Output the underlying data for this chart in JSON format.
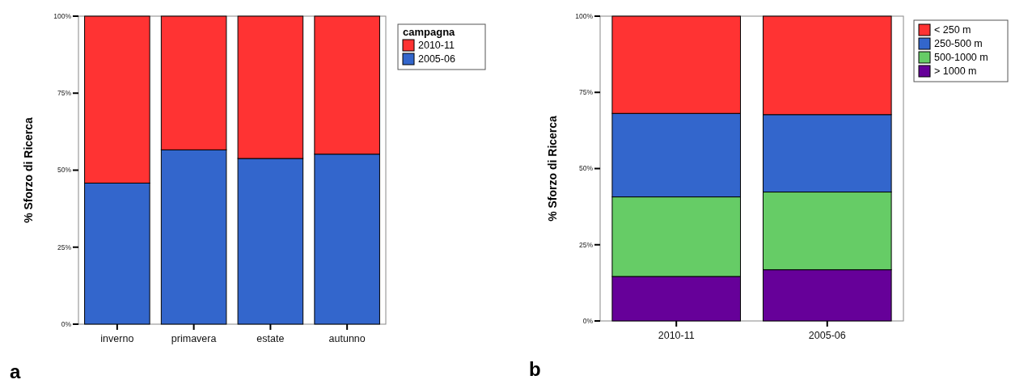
{
  "chart_data": [
    {
      "type": "bar",
      "stacked": true,
      "ylabel": "% Sforzo di Ricerca",
      "legend_title": "campagna",
      "legend": "right",
      "categories": [
        "inverno",
        "primavera",
        "estate",
        "autunno"
      ],
      "series": [
        {
          "name": "2005-06",
          "color": "#3366cc",
          "values": [
            45.8,
            56.6,
            53.8,
            55.2
          ]
        },
        {
          "name": "2010-11",
          "color": "#ff3333",
          "values": [
            54.2,
            43.4,
            46.2,
            44.8
          ]
        }
      ],
      "ylim": [
        0,
        100
      ],
      "yticks": [
        {
          "value": 0,
          "label": "0%"
        },
        {
          "value": 25,
          "label": "25%"
        },
        {
          "value": 50,
          "label": "50%"
        },
        {
          "value": 75,
          "label": "75%"
        },
        {
          "value": 100,
          "label": "100%"
        }
      ],
      "grid": false,
      "annotations": [
        "a"
      ]
    },
    {
      "type": "bar",
      "stacked": true,
      "ylabel": "% Sforzo di Ricerca",
      "legend": "right",
      "categories": [
        "2010-11",
        "2005-06"
      ],
      "series": [
        {
          "name": "> 1000 m",
          "color": "#660099",
          "values": [
            14.6,
            16.8
          ]
        },
        {
          "name": "500-1000 m",
          "color": "#66cc66",
          "values": [
            26.1,
            25.5
          ]
        },
        {
          "name": "250-500 m",
          "color": "#3366cc",
          "values": [
            27.4,
            25.4
          ]
        },
        {
          "name": "< 250 m",
          "color": "#ff3333",
          "values": [
            31.9,
            32.3
          ]
        }
      ],
      "ylim": [
        0,
        100
      ],
      "yticks": [
        {
          "value": 0,
          "label": "0%"
        },
        {
          "value": 25,
          "label": "25%"
        },
        {
          "value": 50,
          "label": "50%"
        },
        {
          "value": 75,
          "label": "75%"
        },
        {
          "value": 100,
          "label": "100%"
        }
      ],
      "grid": false,
      "annotations": [
        "b"
      ]
    }
  ]
}
